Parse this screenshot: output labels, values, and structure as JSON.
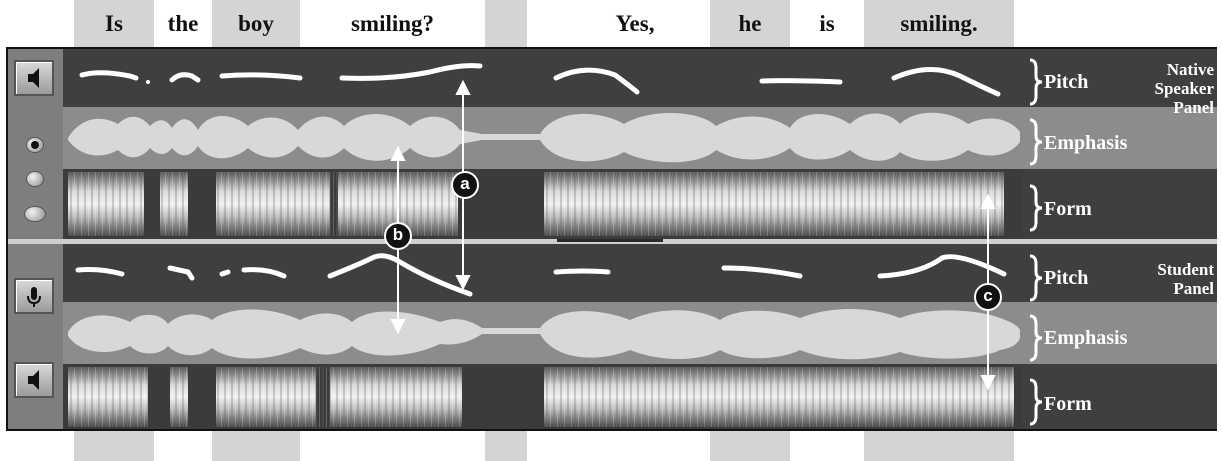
{
  "sentence": {
    "words": [
      "Is",
      "the",
      "boy",
      "smiling?",
      "Yes,",
      "he",
      "is",
      "smiling."
    ]
  },
  "native_panel": {
    "title_line1": "Native",
    "title_line2": "Speaker",
    "title_line3": "Panel",
    "tracks": {
      "pitch_label": "Pitch",
      "emphasis_label": "Emphasis",
      "form_label": "Form"
    },
    "controls": {
      "play_icon": "speaker-icon"
    }
  },
  "student_panel": {
    "title_line1": "Student",
    "title_line2": "Panel",
    "tracks": {
      "pitch_label": "Pitch",
      "emphasis_label": "Emphasis",
      "form_label": "Form"
    },
    "controls": {
      "record_icon": "microphone-icon",
      "play_icon": "speaker-icon"
    }
  },
  "view_options": {
    "selected_index": 0,
    "count": 3
  },
  "callouts": [
    "a",
    "b",
    "c"
  ],
  "colors": {
    "frame": "#3a3a3a",
    "emphasis_band": "#8c8c8c",
    "waveform": "#d8d8d8",
    "pitch_curve": "#ffffff",
    "word_column": "#d4d4d4"
  }
}
